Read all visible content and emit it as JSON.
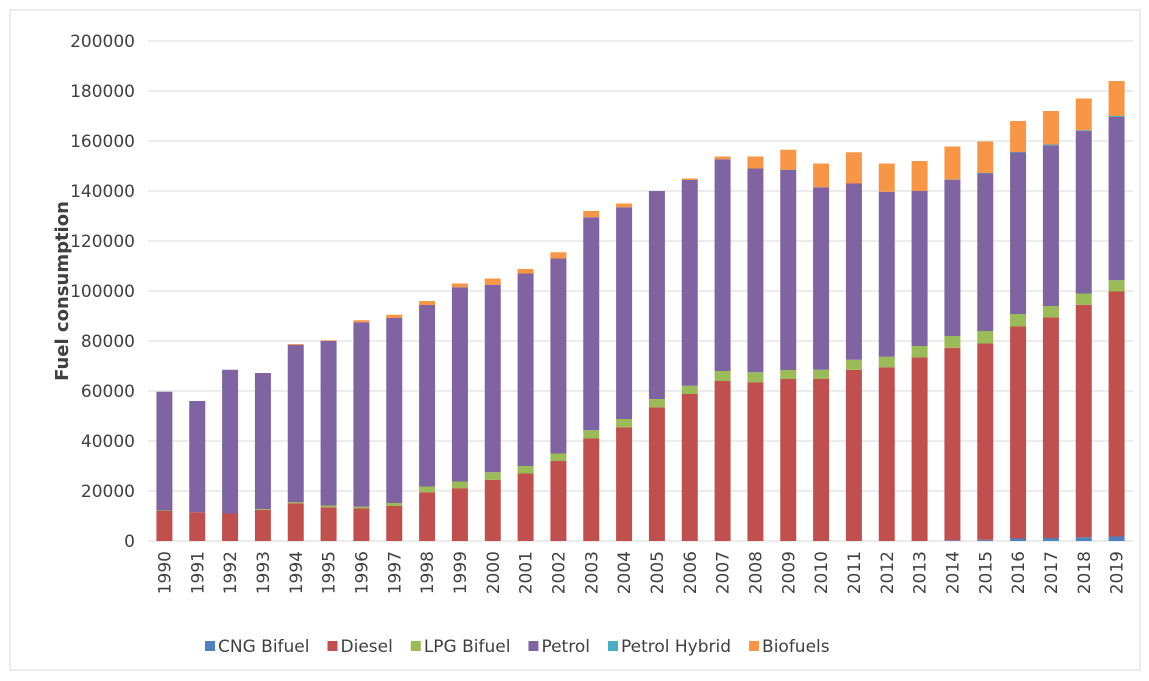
{
  "chart_data": {
    "type": "bar",
    "stacked": true,
    "y_label": "Fuel consumption",
    "categories": [
      "1990",
      "1991",
      "1992",
      "1993",
      "1994",
      "1995",
      "1996",
      "1997",
      "1998",
      "1999",
      "2000",
      "2001",
      "2002",
      "2003",
      "2004",
      "2005",
      "2006",
      "2007",
      "2008",
      "2009",
      "2010",
      "2011",
      "2012",
      "2013",
      "2014",
      "2015",
      "2016",
      "2017",
      "2018",
      "2019"
    ],
    "series": [
      {
        "name": "CNG Bifuel",
        "color": "#4f81bd",
        "values": [
          0,
          0,
          0,
          0,
          0,
          0,
          0,
          0,
          0,
          0,
          0,
          0,
          0,
          0,
          0,
          0,
          0,
          0,
          0,
          0,
          0,
          0,
          0,
          0,
          300,
          500,
          1000,
          1200,
          1500,
          1800
        ]
      },
      {
        "name": "Diesel",
        "color": "#c0504d",
        "values": [
          12000,
          11500,
          11000,
          12500,
          15000,
          13500,
          13000,
          14000,
          19500,
          21000,
          24500,
          27000,
          32000,
          41000,
          45500,
          53500,
          58800,
          64000,
          63500,
          64800,
          64800,
          68500,
          69500,
          73500,
          77000,
          78500,
          84800,
          88300,
          93000,
          98000
        ]
      },
      {
        "name": "LPG Bifuel",
        "color": "#9bbb59",
        "values": [
          200,
          0,
          0,
          300,
          500,
          700,
          700,
          1200,
          2300,
          2800,
          3000,
          3000,
          3000,
          3300,
          3300,
          3300,
          3300,
          4000,
          4000,
          3600,
          3700,
          4000,
          4200,
          4500,
          4700,
          5000,
          5000,
          4500,
          4500,
          4500
        ]
      },
      {
        "name": "Petrol",
        "color": "#8064a2",
        "values": [
          47500,
          44500,
          57500,
          54400,
          63000,
          65800,
          73800,
          74000,
          72600,
          77700,
          75000,
          77000,
          78000,
          85200,
          84700,
          83200,
          82300,
          84700,
          81500,
          80100,
          73000,
          70500,
          66000,
          62000,
          62500,
          63000,
          64600,
          64300,
          65000,
          65300
        ]
      },
      {
        "name": "Petrol Hybrid",
        "color": "#4bacc6",
        "values": [
          0,
          0,
          0,
          0,
          0,
          0,
          0,
          0,
          0,
          0,
          0,
          0,
          0,
          0,
          0,
          0,
          0,
          0,
          0,
          0,
          0,
          0,
          0,
          0,
          100,
          200,
          200,
          300,
          300,
          400
        ]
      },
      {
        "name": "Biofuels",
        "color": "#f79646",
        "values": [
          0,
          0,
          0,
          0,
          300,
          300,
          800,
          1300,
          1600,
          1500,
          2500,
          1800,
          2500,
          2500,
          1500,
          0,
          600,
          1100,
          4800,
          8000,
          9500,
          12500,
          11300,
          12000,
          13200,
          12600,
          12400,
          13400,
          12700,
          14000
        ]
      }
    ],
    "ylim": [
      0,
      200000
    ],
    "yticks": [
      0,
      20000,
      40000,
      60000,
      80000,
      100000,
      120000,
      140000,
      160000,
      180000,
      200000
    ],
    "grid": true,
    "legend": "bottom"
  }
}
